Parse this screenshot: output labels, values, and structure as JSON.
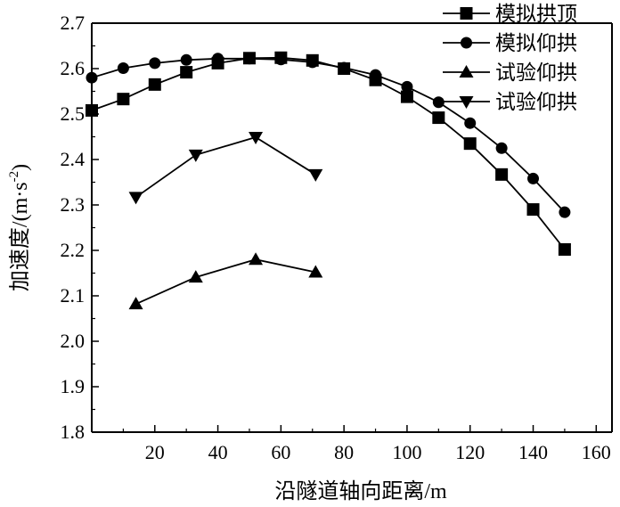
{
  "chart_data": {
    "type": "line",
    "title": "",
    "xlabel": "沿隧道轴向距离/m",
    "ylabel": "加速度/(m·s⁻²)",
    "ylabel_parts": {
      "prefix": "加速度/(m·s",
      "sup": "-2",
      "suffix": ")"
    },
    "xlim": [
      0,
      165
    ],
    "ylim": [
      1.8,
      2.7
    ],
    "x_ticks": [
      20,
      40,
      60,
      80,
      100,
      120,
      140,
      160
    ],
    "y_ticks": [
      1.8,
      1.9,
      2.0,
      2.1,
      2.2,
      2.3,
      2.4,
      2.5,
      2.6,
      2.7
    ],
    "legend_position": "top-right",
    "grid": false,
    "series": [
      {
        "name": "模拟拱顶",
        "marker": "square",
        "x": [
          0,
          10,
          20,
          30,
          40,
          50,
          60,
          70,
          80,
          90,
          100,
          110,
          120,
          130,
          140,
          150
        ],
        "y": [
          2.508,
          2.533,
          2.565,
          2.592,
          2.612,
          2.623,
          2.624,
          2.618,
          2.6,
          2.575,
          2.538,
          2.492,
          2.435,
          2.367,
          2.29,
          2.202
        ]
      },
      {
        "name": "模拟仰拱",
        "marker": "circle",
        "x": [
          0,
          10,
          20,
          30,
          40,
          50,
          60,
          70,
          80,
          90,
          100,
          110,
          120,
          130,
          140,
          150
        ],
        "y": [
          2.58,
          2.601,
          2.612,
          2.619,
          2.622,
          2.622,
          2.62,
          2.614,
          2.602,
          2.586,
          2.56,
          2.526,
          2.48,
          2.425,
          2.358,
          2.284
        ]
      },
      {
        "name": "试验仰拱",
        "marker": "triangle-up",
        "x": [
          14,
          33,
          52,
          71
        ],
        "y": [
          2.082,
          2.141,
          2.18,
          2.152
        ]
      },
      {
        "name": "试验仰拱",
        "marker": "triangle-down",
        "x": [
          14,
          33,
          52,
          71
        ],
        "y": [
          2.317,
          2.41,
          2.449,
          2.367
        ]
      }
    ]
  }
}
